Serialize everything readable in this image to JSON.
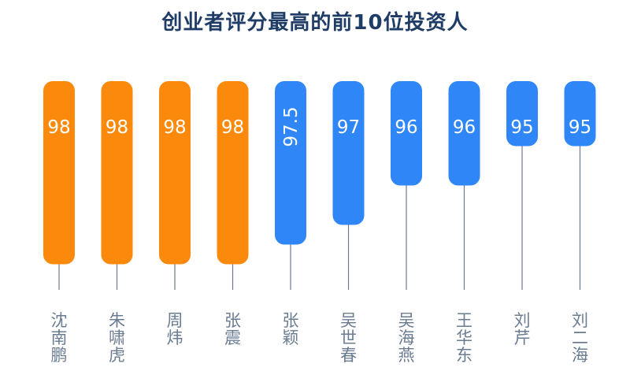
{
  "chart_data": {
    "type": "bar",
    "title": "创业者评分最高的前10位投资人",
    "categories": [
      "沈南鹏",
      "朱啸虎",
      "周炜",
      "张震",
      "张颖",
      "吴世春",
      "吴海燕",
      "王华东",
      "刘芹",
      "刘二海"
    ],
    "values": [
      98,
      98,
      98,
      98,
      97.5,
      97,
      96,
      96,
      95,
      95
    ],
    "value_labels": [
      "98",
      "98",
      "98",
      "98",
      "97.5",
      "97",
      "96",
      "96",
      "95",
      "95"
    ],
    "colors": [
      "#fb8a0c",
      "#fb8a0c",
      "#fb8a0c",
      "#fb8a0c",
      "#2f86f6",
      "#2f86f6",
      "#2f86f6",
      "#2f86f6",
      "#2f86f6",
      "#2f86f6"
    ],
    "xlabel": "",
    "ylabel": "",
    "grid": false,
    "legend": "none"
  }
}
